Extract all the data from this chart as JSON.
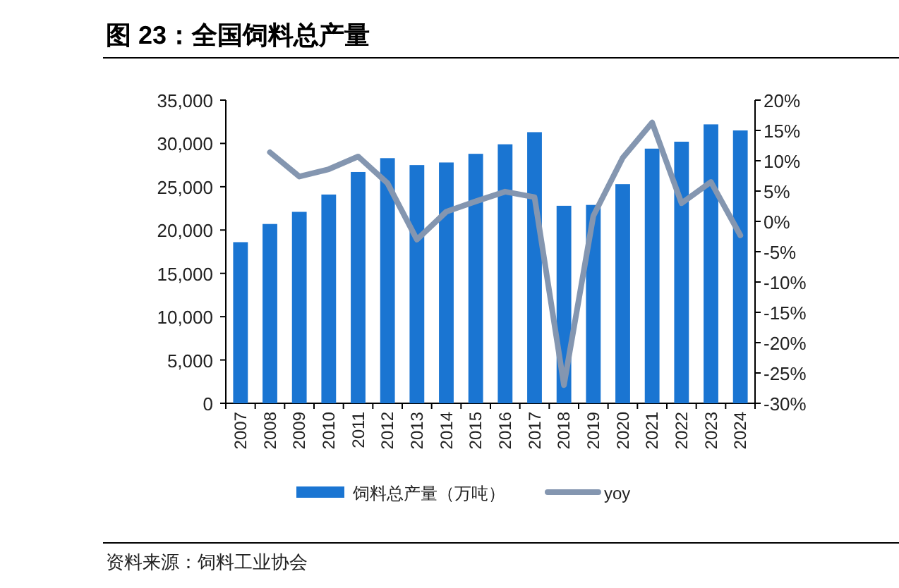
{
  "chart_data": {
    "type": "bar",
    "title": "图 23：全国饲料总产量",
    "annotations": [
      "资料来源：饲料工业协会"
    ],
    "categories": [
      "2007",
      "2008",
      "2009",
      "2010",
      "2011",
      "2012",
      "2013",
      "2014",
      "2015",
      "2016",
      "2017",
      "2018",
      "2019",
      "2020",
      "2021",
      "2022",
      "2023",
      "2024"
    ],
    "series": [
      {
        "name": "饲料总产量（万吨）",
        "color": "#1a75d2",
        "values": [
          18600,
          20700,
          22100,
          24100,
          26700,
          28300,
          27500,
          27800,
          28800,
          29900,
          31300,
          22800,
          22900,
          25300,
          29400,
          30200,
          32200,
          31500
        ]
      },
      {
        "name": "yoy",
        "type": "line",
        "axis": "y2",
        "color": "#8496b0",
        "values": [
          null,
          11.4,
          7.4,
          8.6,
          10.7,
          6.3,
          -3,
          1.6,
          3.3,
          4.9,
          4,
          -27,
          0.9,
          10.5,
          16.3,
          3,
          6.5,
          -2.3
        ]
      }
    ],
    "ylim": [
      0,
      35000
    ],
    "yticks": [
      0,
      {
        "value": 5000,
        "label": "5,000"
      },
      {
        "value": 10000,
        "label": "10,000"
      },
      {
        "value": 15000,
        "label": "15,000"
      },
      {
        "value": 20000,
        "label": "20,000"
      },
      {
        "value": 25000,
        "label": "25,000"
      },
      {
        "value": 30000,
        "label": "30,000"
      },
      {
        "value": 35000,
        "label": "35,000"
      }
    ],
    "y2lim": [
      -30,
      20
    ],
    "y2ticks": [
      {
        "value": -30,
        "label": "-30%"
      },
      {
        "value": -25,
        "label": "-25%"
      },
      {
        "value": -20,
        "label": "-20%"
      },
      {
        "value": -15,
        "label": "-15%"
      },
      {
        "value": -10,
        "label": "-10%"
      },
      {
        "value": -5,
        "label": "-5%"
      },
      {
        "value": 0,
        "label": "0%"
      },
      {
        "value": 5,
        "label": "5%"
      },
      {
        "value": 10,
        "label": "10%"
      },
      {
        "value": 15,
        "label": "15%"
      },
      {
        "value": 20,
        "label": "20%"
      }
    ],
    "legend": "bottom"
  }
}
